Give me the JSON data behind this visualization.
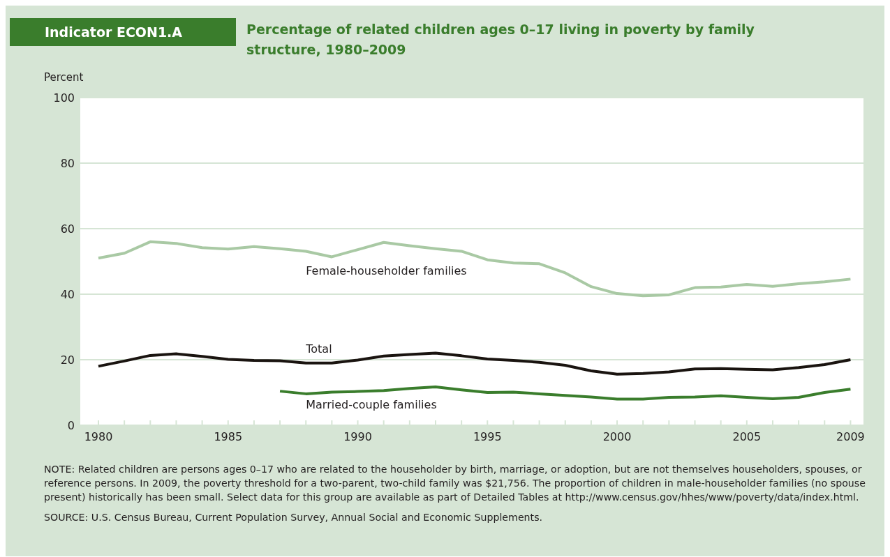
{
  "chart_data": {
    "type": "line",
    "title": "Percentage of related children ages 0–17 living in poverty by family structure, 1980–2009",
    "ylabel": "Percent",
    "x": [
      1980,
      1981,
      1982,
      1983,
      1984,
      1985,
      1986,
      1987,
      1988,
      1989,
      1990,
      1991,
      1992,
      1993,
      1994,
      1995,
      1996,
      1997,
      1998,
      1999,
      2000,
      2001,
      2002,
      2003,
      2004,
      2005,
      2006,
      2007,
      2008,
      2009
    ],
    "series": [
      {
        "name": "Female-householder families",
        "color": "#a9c9a4",
        "values": [
          51,
          52.5,
          56,
          55.5,
          54.2,
          53.8,
          54.5,
          53.9,
          53.1,
          51.4,
          53.6,
          55.8,
          54.8,
          53.9,
          53.1,
          50.5,
          49.5,
          49.3,
          46.5,
          42.3,
          40.2,
          39.5,
          39.8,
          42,
          42.2,
          43,
          42.4,
          43.2,
          43.8,
          44.6
        ]
      },
      {
        "name": "Total",
        "color": "#1a1410",
        "values": [
          18,
          19.6,
          21.3,
          21.8,
          21,
          20.1,
          19.8,
          19.7,
          19,
          19,
          19.9,
          21.1,
          21.6,
          22,
          21.2,
          20.2,
          19.8,
          19.2,
          18.3,
          16.6,
          15.6,
          15.8,
          16.3,
          17.2,
          17.3,
          17.1,
          16.9,
          17.6,
          18.5,
          20
        ]
      },
      {
        "name": "Married-couple families",
        "color": "#3a7d2c",
        "values": [
          null,
          null,
          null,
          null,
          null,
          null,
          null,
          10.4,
          9.6,
          10.1,
          10.3,
          10.6,
          11.2,
          11.7,
          10.8,
          10,
          10.1,
          9.6,
          9.1,
          8.6,
          8,
          8,
          8.5,
          8.6,
          9,
          8.5,
          8.1,
          8.5,
          10,
          11
        ]
      }
    ],
    "xlim": [
      1979.3,
      2009.5
    ],
    "xticks": [
      1980,
      {
        "value": 1981,
        "label": null
      },
      {
        "value": 1982,
        "label": null
      },
      {
        "value": 1983,
        "label": null
      },
      {
        "value": 1984,
        "label": null
      },
      1985,
      {
        "value": 1986,
        "label": null
      },
      {
        "value": 1987,
        "label": null
      },
      {
        "value": 1988,
        "label": null
      },
      {
        "value": 1989,
        "label": null
      },
      1990,
      {
        "value": 1991,
        "label": null
      },
      {
        "value": 1992,
        "label": null
      },
      {
        "value": 1993,
        "label": null
      },
      {
        "value": 1994,
        "label": null
      },
      1995,
      {
        "value": 1996,
        "label": null
      },
      {
        "value": 1997,
        "label": null
      },
      {
        "value": 1998,
        "label": null
      },
      {
        "value": 1999,
        "label": null
      },
      2000,
      {
        "value": 2001,
        "label": null
      },
      {
        "value": 2002,
        "label": null
      },
      {
        "value": 2003,
        "label": null
      },
      {
        "value": 2004,
        "label": null
      },
      2005,
      {
        "value": 2006,
        "label": null
      },
      {
        "value": 2007,
        "label": null
      },
      {
        "value": 2008,
        "label": null
      },
      2009
    ],
    "ylim": [
      0,
      100
    ],
    "yticks": [
      0,
      20,
      40,
      60,
      80,
      100
    ],
    "grid": "y",
    "legend": false,
    "marker": "none",
    "line_style": "solid",
    "annotations": [
      "Indicator ECON1.A",
      "NOTE: Related children are persons ages 0–17 who are related to the householder by birth, marriage, or adoption, but are not themselves householders, spouses, or reference persons. In 2009, the poverty threshold for a two-parent, two-child family was $21,756. The proportion of children in male-householder families (no spouse present) historically has been small. Select data for this group are available as part of Detailed Tables at http://www.census.gov/hhes/www/poverty/data/index.html.",
      "SOURCE: U.S. Census Bureau, Current Population Survey, Annual Social and Economic Supplements."
    ]
  }
}
